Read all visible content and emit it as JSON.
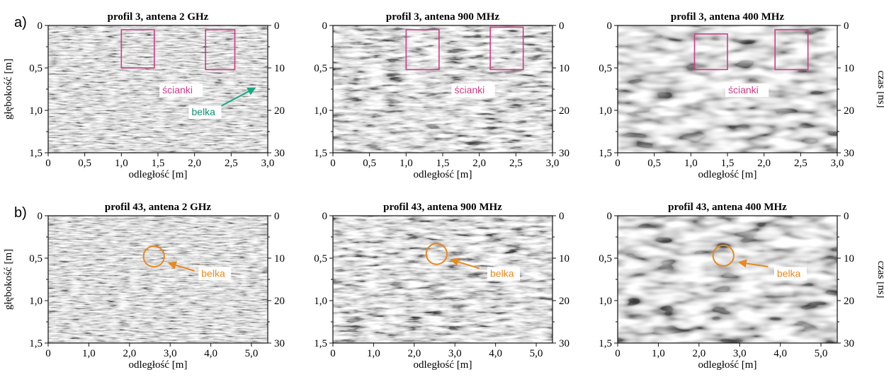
{
  "rows": [
    {
      "label": "a)",
      "panels": [
        {
          "title": "profil 3, antena 2 GHz",
          "texture": "fine",
          "boxes": [
            [
              1.0,
              0.05,
              1.45,
              0.5
            ],
            [
              2.15,
              0.05,
              2.55,
              0.52
            ]
          ],
          "labels": [
            {
              "text": "ścianki",
              "x": 1.55,
              "y": 0.8,
              "color": "#cc3d86"
            },
            {
              "text": "belka",
              "x": 1.95,
              "y": 1.06,
              "color": "#0e8f6f"
            }
          ],
          "arrow": {
            "from": [
              2.25,
              1.0
            ],
            "to": [
              2.82,
              0.74
            ],
            "color": "#1aa882"
          }
        },
        {
          "title": "profil 3, antena 900 MHz",
          "texture": "medium",
          "boxes": [
            [
              1.0,
              0.05,
              1.45,
              0.52
            ],
            [
              2.15,
              0.02,
              2.6,
              0.52
            ]
          ],
          "labels": [
            {
              "text": "ścianki",
              "x": 1.65,
              "y": 0.8,
              "color": "#cc3d86"
            }
          ]
        },
        {
          "title": "profil 3, antena 400 MHz",
          "texture": "coarse",
          "boxes": [
            [
              1.05,
              0.1,
              1.5,
              0.52
            ],
            [
              2.15,
              0.05,
              2.6,
              0.52
            ]
          ],
          "labels": [
            {
              "text": "ścianki",
              "x": 1.5,
              "y": 0.8,
              "color": "#cc3d86"
            }
          ]
        }
      ]
    },
    {
      "label": "b)",
      "panels": [
        {
          "title": "profil 43, antena 2 GHz",
          "texture": "fine",
          "circle": {
            "x": 2.6,
            "y": 0.48,
            "r": 0.3,
            "color": "#e8891e"
          },
          "labels": [
            {
              "text": "belka",
              "x": 3.75,
              "y": 0.72,
              "color": "#e8891e"
            }
          ],
          "arrow": {
            "from": [
              3.6,
              0.65
            ],
            "to": [
              2.98,
              0.56
            ],
            "color": "#e8891e"
          }
        },
        {
          "title": "profil 43, antena 900 MHz",
          "texture": "medium",
          "circle": {
            "x": 2.55,
            "y": 0.45,
            "r": 0.3,
            "color": "#e8891e"
          },
          "labels": [
            {
              "text": "belka",
              "x": 3.85,
              "y": 0.72,
              "color": "#e8891e"
            }
          ],
          "arrow": {
            "from": [
              3.6,
              0.62
            ],
            "to": [
              2.92,
              0.52
            ],
            "color": "#e8891e"
          }
        },
        {
          "title": "profil 43, antena 400 MHz",
          "texture": "coarse",
          "circle": {
            "x": 2.6,
            "y": 0.47,
            "r": 0.3,
            "color": "#e8891e"
          },
          "labels": [
            {
              "text": "belka",
              "x": 3.9,
              "y": 0.72,
              "color": "#e8891e"
            }
          ],
          "arrow": {
            "from": [
              3.7,
              0.6
            ],
            "to": [
              3.0,
              0.55
            ],
            "color": "#e8891e"
          }
        }
      ]
    }
  ],
  "axes": {
    "xlabel": "odległość [m]",
    "ylabel_left": "głębokość [m]",
    "ylabel_right": "czas [ns]",
    "depth_ticks": [
      {
        "v": 0,
        "t": "0"
      },
      {
        "v": 0.5,
        "t": "0,5"
      },
      {
        "v": 1.0,
        "t": "1,0"
      },
      {
        "v": 1.5,
        "t": "1,5"
      }
    ],
    "time_ticks": [
      {
        "v": 0,
        "t": "0"
      },
      {
        "v": 10,
        "t": "10"
      },
      {
        "v": 20,
        "t": "20"
      },
      {
        "v": 30,
        "t": "30"
      }
    ],
    "x_ticks_row_a": [
      {
        "v": 0,
        "t": "0"
      },
      {
        "v": 0.5,
        "t": "0,5"
      },
      {
        "v": 1.0,
        "t": "1,0"
      },
      {
        "v": 1.5,
        "t": "1,5"
      },
      {
        "v": 2.0,
        "t": "2,0"
      },
      {
        "v": 2.5,
        "t": "2,5"
      },
      {
        "v": 3.0,
        "t": "3,0"
      }
    ],
    "x_ticks_row_b": [
      {
        "v": 0,
        "t": "0"
      },
      {
        "v": 1.0,
        "t": "1,0"
      },
      {
        "v": 2.0,
        "t": "2,0"
      },
      {
        "v": 3.0,
        "t": "3,0"
      },
      {
        "v": 4.0,
        "t": "4,0"
      },
      {
        "v": 5.0,
        "t": "5,0"
      }
    ],
    "x_range_row_a": [
      0,
      3.0
    ],
    "x_range_row_b": [
      0,
      5.4
    ],
    "depth_range": [
      0,
      1.5
    ],
    "time_range": [
      0,
      30
    ]
  }
}
